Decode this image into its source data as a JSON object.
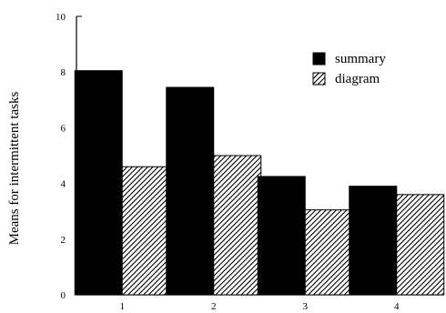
{
  "chart_data": {
    "type": "bar",
    "categories": [
      "1",
      "2",
      "3",
      "4"
    ],
    "series": [
      {
        "name": "summary",
        "values": [
          8.05,
          7.45,
          4.25,
          3.9
        ],
        "color": "#000000",
        "pattern": "solid"
      },
      {
        "name": "diagram",
        "values": [
          4.6,
          5.0,
          3.05,
          3.6
        ],
        "color": "#000000",
        "pattern": "hatched"
      }
    ],
    "title": "",
    "xlabel": "",
    "ylabel": "Means for intermittent tasks",
    "ylim": [
      0,
      10
    ],
    "yticks": [
      "0",
      "2",
      "4",
      "6",
      "8",
      "10"
    ],
    "grid": false,
    "legend_position": "top-right"
  }
}
